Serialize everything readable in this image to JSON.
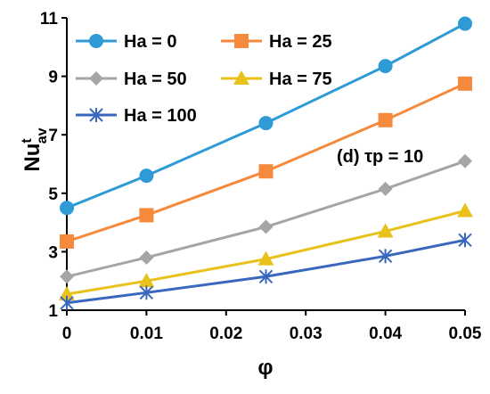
{
  "chart_data": {
    "type": "line",
    "x": [
      0,
      0.01,
      0.025,
      0.04,
      0.05
    ],
    "x_tick_labels": [
      "0",
      "0.01",
      "0.02",
      "0.03",
      "0.04",
      "0.05"
    ],
    "y_tick_labels": [
      "1",
      "3",
      "5",
      "7",
      "9",
      "11"
    ],
    "xlabel": "φ",
    "ylabel_main": "Nu",
    "ylabel_sup": "t",
    "ylabel_sub": "av",
    "xlim": [
      0,
      0.05
    ],
    "ylim": [
      1,
      11
    ],
    "grid": false,
    "legend_position": "top-left",
    "annotation": "(d) τp = 10",
    "series": [
      {
        "name": "Ha = 0",
        "values": [
          4.5,
          5.6,
          7.4,
          9.35,
          10.8
        ],
        "color": "#2E9BD6",
        "marker": "circle"
      },
      {
        "name": "Ha = 25",
        "values": [
          3.35,
          4.25,
          5.75,
          7.5,
          8.75
        ],
        "color": "#F58A3C",
        "marker": "square"
      },
      {
        "name": "Ha = 50",
        "values": [
          2.15,
          2.8,
          3.85,
          5.15,
          6.1
        ],
        "color": "#A5A5A5",
        "marker": "diamond"
      },
      {
        "name": "Ha = 75",
        "values": [
          1.55,
          2.0,
          2.75,
          3.7,
          4.4
        ],
        "color": "#E8C21A",
        "marker": "triangle"
      },
      {
        "name": "Ha = 100",
        "values": [
          1.25,
          1.6,
          2.15,
          2.85,
          3.4
        ],
        "color": "#3A67BE",
        "marker": "star"
      }
    ]
  }
}
